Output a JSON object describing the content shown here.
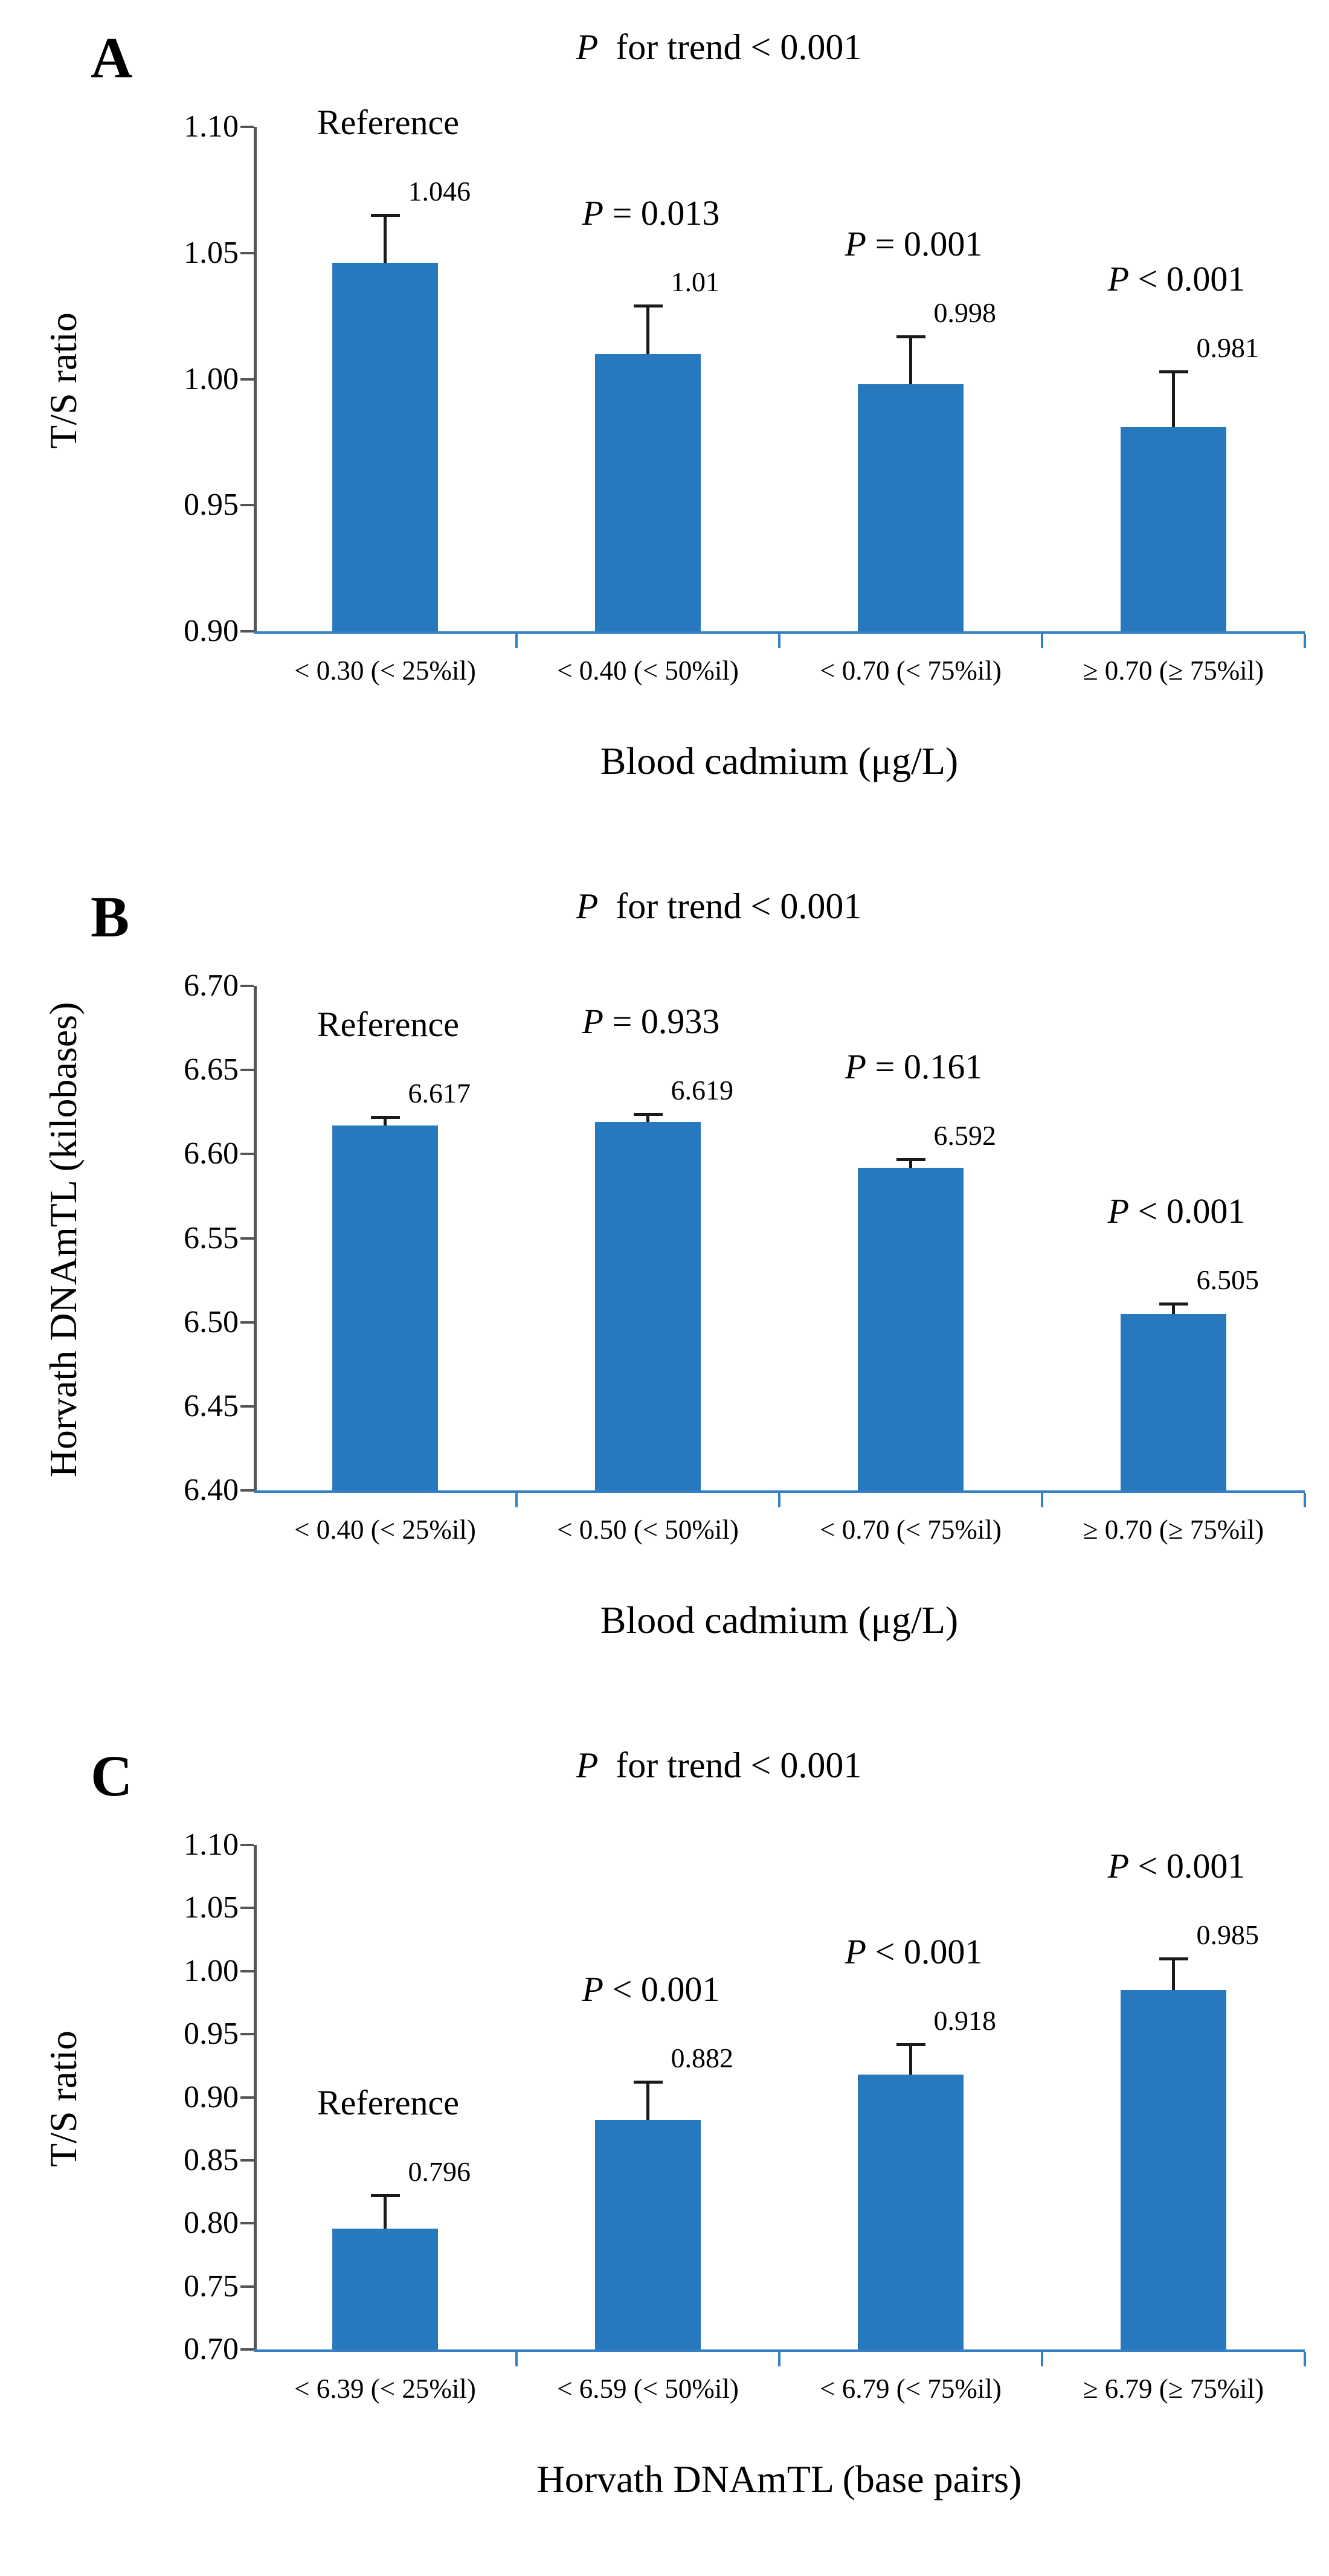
{
  "figure_title": "Bar chart figure with three panels",
  "colors": {
    "bar": "#2878BE",
    "axis": "#555555",
    "baseline": "#3580C4",
    "whisker": "#1a1a1a",
    "text": "#000000"
  },
  "chart_data": [
    {
      "type": "bar",
      "panel": "A",
      "title": "P for trend < 0.001",
      "ylabel": "T/S ratio",
      "xlabel": "Blood cadmium (μg/L)",
      "ylim": [
        0.9,
        1.1
      ],
      "yticks": [
        "1.10",
        "1.05",
        "1.00",
        "0.95",
        "0.90"
      ],
      "grid": false,
      "categories": [
        "< 0.30 (< 25%il)",
        "< 0.40 (< 50%il)",
        "< 0.70 (< 75%il)",
        "≥ 0.70 (≥ 75%il)"
      ],
      "values": [
        1.046,
        1.01,
        0.998,
        0.981
      ],
      "value_labels": [
        "1.046",
        "1.01",
        "0.998",
        "0.981"
      ],
      "errors_up": [
        0.019,
        0.019,
        0.019,
        0.022
      ],
      "annotations": [
        "Reference",
        "P = 0.013",
        "P = 0.001",
        "P < 0.001"
      ]
    },
    {
      "type": "bar",
      "panel": "B",
      "title": "P for trend < 0.001",
      "ylabel": "Horvath DNAmTL (kilobases)",
      "xlabel": "Blood cadmium (μg/L)",
      "ylim": [
        6.4,
        6.7
      ],
      "yticks": [
        "6.70",
        "6.65",
        "6.60",
        "6.55",
        "6.50",
        "6.45",
        "6.40"
      ],
      "grid": false,
      "categories": [
        "< 0.40 (< 25%il)",
        "< 0.50 (< 50%il)",
        "< 0.70 (< 75%il)",
        "≥ 0.70 (≥ 75%il)"
      ],
      "values": [
        6.617,
        6.619,
        6.592,
        6.505
      ],
      "value_labels": [
        "6.617",
        "6.619",
        "6.592",
        "6.505"
      ],
      "errors_up": [
        0.005,
        0.005,
        0.005,
        0.006
      ],
      "annotations": [
        "Reference",
        "P = 0.933",
        "P = 0.161",
        "P < 0.001"
      ]
    },
    {
      "type": "bar",
      "panel": "C",
      "title": "P for trend < 0.001",
      "ylabel": "T/S ratio",
      "xlabel": "Horvath DNAmTL (base pairs)",
      "ylim": [
        0.7,
        1.1
      ],
      "yticks": [
        "1.10",
        "1.05",
        "1.00",
        "0.95",
        "0.90",
        "0.85",
        "0.80",
        "0.75",
        "0.70"
      ],
      "grid": false,
      "categories": [
        "< 6.39 (< 25%il)",
        "< 6.59 (< 50%il)",
        "< 6.79 (< 75%il)",
        "≥ 6.79 (≥ 75%il)"
      ],
      "values": [
        0.796,
        0.882,
        0.918,
        0.985
      ],
      "value_labels": [
        "0.796",
        "0.882",
        "0.918",
        "0.985"
      ],
      "errors_up": [
        0.026,
        0.03,
        0.024,
        0.025
      ],
      "annotations": [
        "Reference",
        "P < 0.001",
        "P < 0.001",
        "P < 0.001"
      ]
    }
  ]
}
